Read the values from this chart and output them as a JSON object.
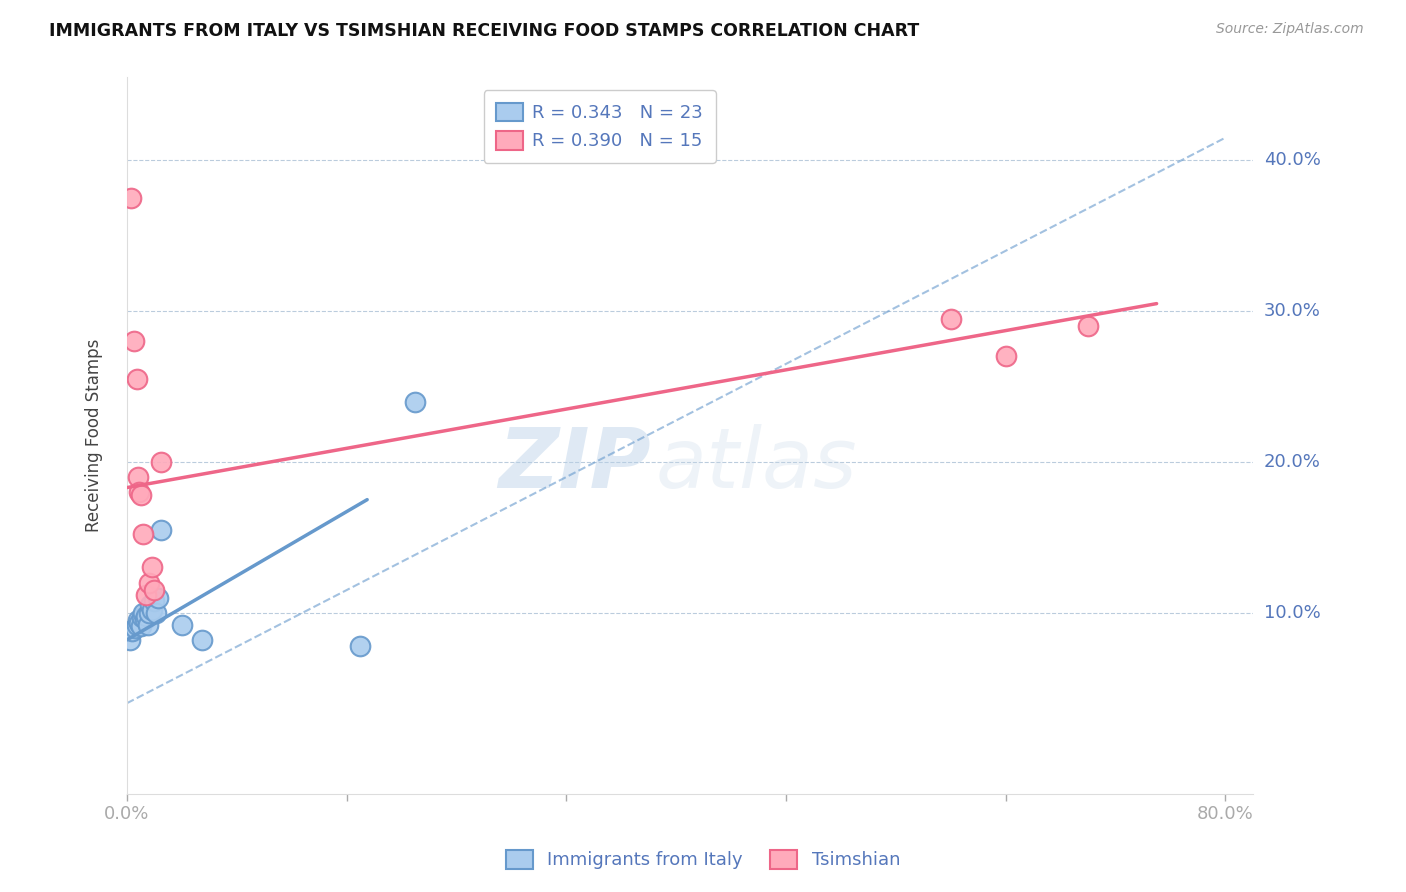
{
  "title": "IMMIGRANTS FROM ITALY VS TSIMSHIAN RECEIVING FOOD STAMPS CORRELATION CHART",
  "source": "Source: ZipAtlas.com",
  "ylabel": "Receiving Food Stamps",
  "ytick_labels": [
    "10.0%",
    "20.0%",
    "30.0%",
    "40.0%"
  ],
  "ytick_values": [
    0.1,
    0.2,
    0.3,
    0.4
  ],
  "xlim": [
    0.0,
    0.82
  ],
  "ylim": [
    -0.02,
    0.455
  ],
  "legend_r1": "R = 0.343",
  "legend_n1": "N = 23",
  "legend_r2": "R = 0.390",
  "legend_n2": "N = 15",
  "blue_color": "#6699CC",
  "blue_fill": "#AACCEE",
  "pink_color": "#EE6688",
  "pink_fill": "#FFAABB",
  "blue_scatter_x": [
    0.002,
    0.004,
    0.006,
    0.007,
    0.008,
    0.009,
    0.01,
    0.011,
    0.012,
    0.013,
    0.014,
    0.015,
    0.016,
    0.017,
    0.018,
    0.02,
    0.021,
    0.023,
    0.025,
    0.04,
    0.055,
    0.17,
    0.21
  ],
  "blue_scatter_y": [
    0.082,
    0.088,
    0.09,
    0.092,
    0.095,
    0.093,
    0.091,
    0.097,
    0.1,
    0.096,
    0.098,
    0.092,
    0.1,
    0.105,
    0.102,
    0.108,
    0.1,
    0.11,
    0.155,
    0.092,
    0.082,
    0.078,
    0.24
  ],
  "pink_scatter_x": [
    0.003,
    0.005,
    0.007,
    0.008,
    0.009,
    0.01,
    0.012,
    0.014,
    0.016,
    0.018,
    0.02,
    0.025,
    0.6,
    0.64,
    0.7
  ],
  "pink_scatter_y": [
    0.375,
    0.28,
    0.255,
    0.19,
    0.18,
    0.178,
    0.152,
    0.112,
    0.12,
    0.13,
    0.115,
    0.2,
    0.295,
    0.27,
    0.29
  ],
  "blue_line_x": [
    0.0,
    0.175
  ],
  "blue_line_y": [
    0.082,
    0.175
  ],
  "pink_line_x": [
    0.0,
    0.75
  ],
  "pink_line_y": [
    0.183,
    0.305
  ],
  "dashed_line_x": [
    0.0,
    0.8
  ],
  "dashed_line_y": [
    0.04,
    0.415
  ],
  "watermark_zip": "ZIP",
  "watermark_atlas": "atlas",
  "title_color": "#111111",
  "axis_color": "#5577BB",
  "tick_color": "#5577BB",
  "grid_color": "#BBCCDD",
  "source_color": "#999999"
}
